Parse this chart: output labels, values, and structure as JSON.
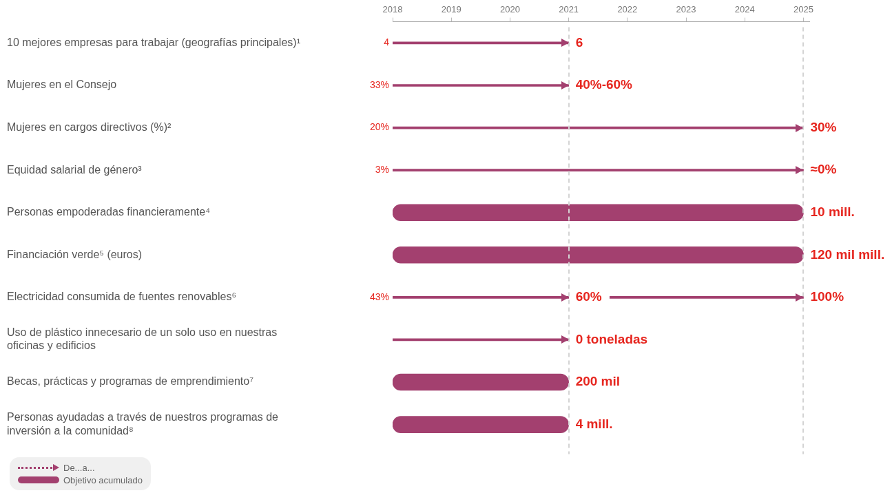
{
  "chart_data": {
    "type": "bar",
    "orientation": "horizontal",
    "categories": [
      "10 mejores empresas para trabajar (geografías principales)¹",
      "Mujeres en el Consejo",
      "Mujeres en cargos directivos (%)²",
      "Equidad salarial de género³",
      "Personas empoderadas financieramente⁴",
      "Financiación verde⁵ (euros)",
      "Electricidad consumida de fuentes renovables⁶",
      "Uso de plástico innecesario de un solo uso en nuestras oficinas y edificios",
      "Becas, prácticas y programas de emprendimiento⁷",
      "Personas ayudadas a través de nuestros programas de inversión a la comunidad⁸"
    ],
    "series": [
      {
        "name": "De...a...",
        "color": "#a3406f",
        "line_style": "dotted",
        "base": [
          2018,
          2018,
          2018,
          2018,
          null,
          null,
          2018,
          2018,
          null,
          null
        ],
        "values": [
          3,
          3,
          7,
          7,
          null,
          null,
          3,
          3,
          null,
          null
        ]
      },
      {
        "color": "#a3406f",
        "line_style": "dotted",
        "base": [
          null,
          null,
          null,
          null,
          null,
          null,
          2021.7,
          null,
          null,
          null
        ],
        "values": [
          null,
          null,
          null,
          null,
          null,
          null,
          3.3,
          null,
          null,
          null
        ]
      },
      {
        "name": "Objetivo acumulado",
        "color": "#a3406f",
        "line_style": "solid",
        "base": [
          null,
          null,
          null,
          null,
          2018,
          2018,
          null,
          null,
          2018,
          2018
        ],
        "values": [
          null,
          null,
          null,
          null,
          7,
          7,
          null,
          null,
          3,
          3
        ]
      }
    ],
    "xlim": [
      2018,
      2025.1
    ],
    "xticks": [
      2018,
      2019,
      2020,
      2021,
      2022,
      2023,
      2024,
      2025
    ],
    "grid": false,
    "legend": "bottom left",
    "ref_lines": [
      {
        "axis": "x",
        "value": 2021,
        "color": "#d4d4d4",
        "line_style": "dashed"
      },
      {
        "axis": "x",
        "value": 2025,
        "color": "#d4d4d4",
        "line_style": "dashed"
      }
    ],
    "annotations": [
      {
        "text": "4",
        "x": 2018,
        "y": "10 mejores empresas para trabajar (geografías principales)¹"
      },
      {
        "text": "6",
        "x": 2021,
        "y": "10 mejores empresas para trabajar (geografías principales)¹"
      },
      {
        "text": "33%",
        "x": 2018,
        "y": "Mujeres en el Consejo"
      },
      {
        "text": "40%-60%",
        "x": 2021,
        "y": "Mujeres en el Consejo"
      },
      {
        "text": "20%",
        "x": 2018,
        "y": "Mujeres en cargos directivos (%)²"
      },
      {
        "text": "30%",
        "x": 2025,
        "y": "Mujeres en cargos directivos (%)²"
      },
      {
        "text": "3%",
        "x": 2018,
        "y": "Equidad salarial de género³"
      },
      {
        "text": "≈0%",
        "x": 2025,
        "y": "Equidad salarial de género³"
      },
      {
        "text": "10 mill.",
        "x": 2025,
        "y": "Personas empoderadas financieramente⁴"
      },
      {
        "text": "120 mil mill.",
        "x": 2025,
        "y": "Financiación verde⁵ (euros)"
      },
      {
        "text": "43%",
        "x": 2018,
        "y": "Electricidad consumida de fuentes renovables⁶"
      },
      {
        "text": "60%",
        "x": 2021,
        "y": "Electricidad consumida de fuentes renovables⁶"
      },
      {
        "text": "100%",
        "x": 2025,
        "y": "Electricidad consumida de fuentes renovables⁶"
      },
      {
        "text": "0 toneladas",
        "x": 2021,
        "y": "Uso de plástico innecesario de un solo uso en nuestras oficinas y edificios"
      },
      {
        "text": "200 mil",
        "x": 2021,
        "y": "Becas, prácticas y programas de emprendimiento⁷"
      },
      {
        "text": "4 mill.",
        "x": 2021,
        "y": "Personas ayudadas a través de nuestros programas de inversión a la comunidad⁸"
      }
    ]
  }
}
